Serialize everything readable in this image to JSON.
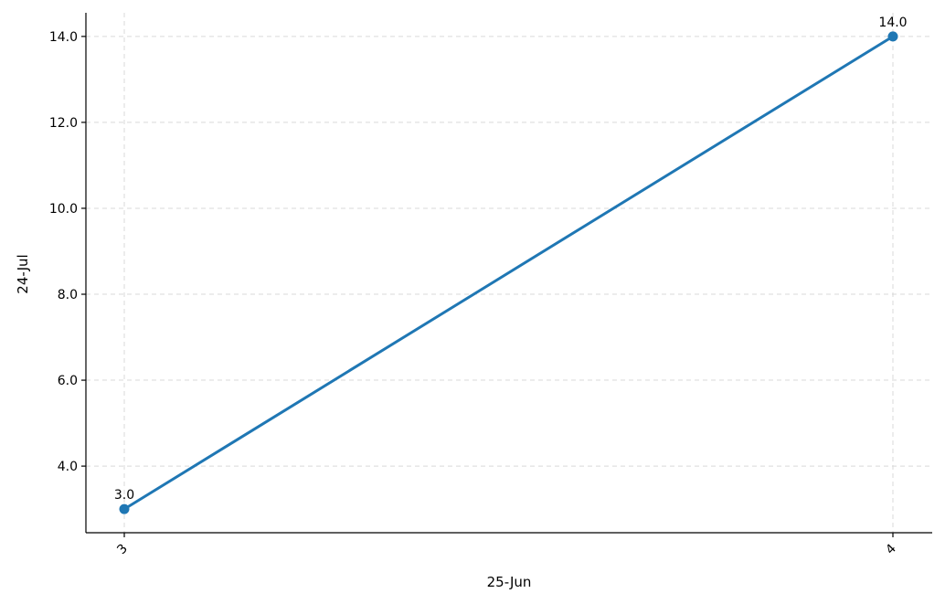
{
  "chart_data": {
    "type": "line",
    "title": "",
    "xlabel": "25-Jun",
    "ylabel": "24-Jul",
    "categories": [
      "3",
      "4"
    ],
    "series": [
      {
        "values": [
          3.0,
          14.0
        ],
        "data_labels": [
          "3.0",
          "14.0"
        ],
        "color": "#1f77b4"
      }
    ],
    "ylim": [
      2.45,
      14.55
    ],
    "yticks": [
      4.0,
      6.0,
      8.0,
      10.0,
      12.0,
      14.0
    ],
    "ytick_labels": [
      "4.0",
      "6.0",
      "8.0",
      "10.0",
      "12.0",
      "14.0"
    ],
    "grid": true,
    "grid_style": "dashed",
    "legend": "none",
    "xtick_rotation": "rotated"
  }
}
